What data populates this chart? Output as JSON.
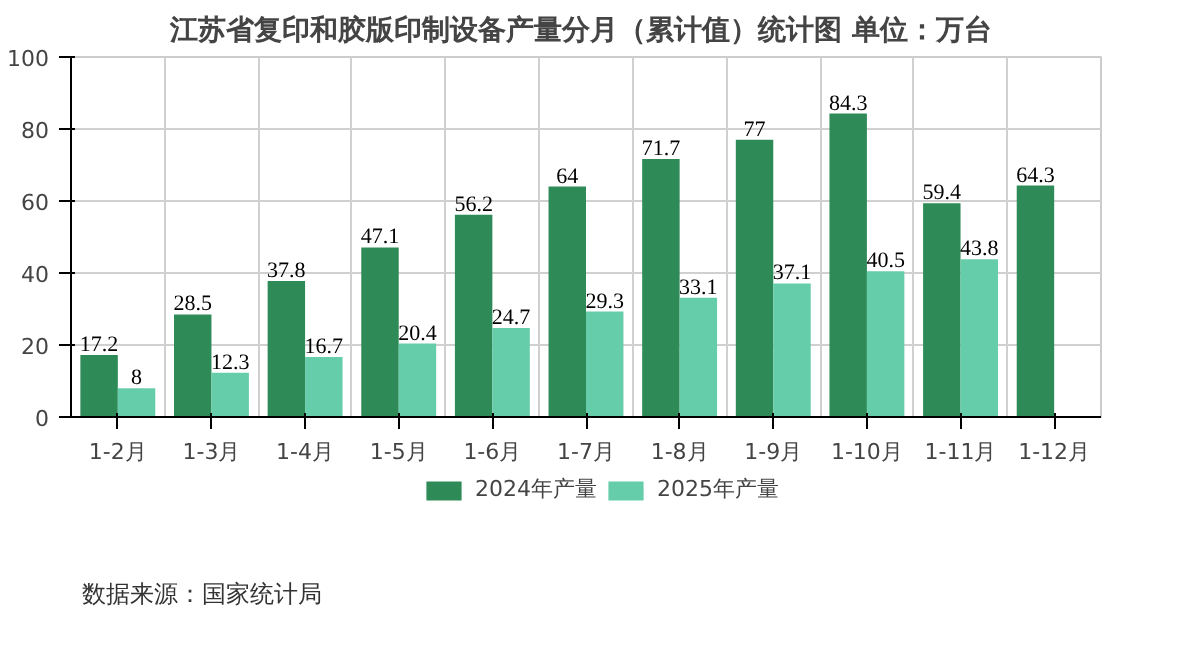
{
  "chart_data": {
    "type": "bar",
    "title": "江苏省复印和胶版印制设备产量分月（累计值）统计图  单位：万台",
    "categories": [
      "1-2月",
      "1-3月",
      "1-4月",
      "1-5月",
      "1-6月",
      "1-7月",
      "1-8月",
      "1-9月",
      "1-10月",
      "1-11月",
      "1-12月"
    ],
    "series": [
      {
        "name": "2024年产量",
        "color": "#2e8b57",
        "values": [
          17.2,
          28.5,
          37.8,
          47.1,
          56.2,
          64,
          71.7,
          77,
          84.3,
          59.4,
          64.3
        ]
      },
      {
        "name": "2025年产量",
        "color": "#66cdaa",
        "values": [
          8,
          12.3,
          16.7,
          20.4,
          24.7,
          29.3,
          33.1,
          37.1,
          40.5,
          43.8,
          null
        ]
      }
    ],
    "ylim": [
      0,
      100
    ],
    "yticks": [
      0,
      20,
      40,
      60,
      80,
      100
    ],
    "grid": true,
    "legend": "bottom",
    "data_labels": true,
    "annotations": [
      "数据来源：国家统计局"
    ]
  }
}
